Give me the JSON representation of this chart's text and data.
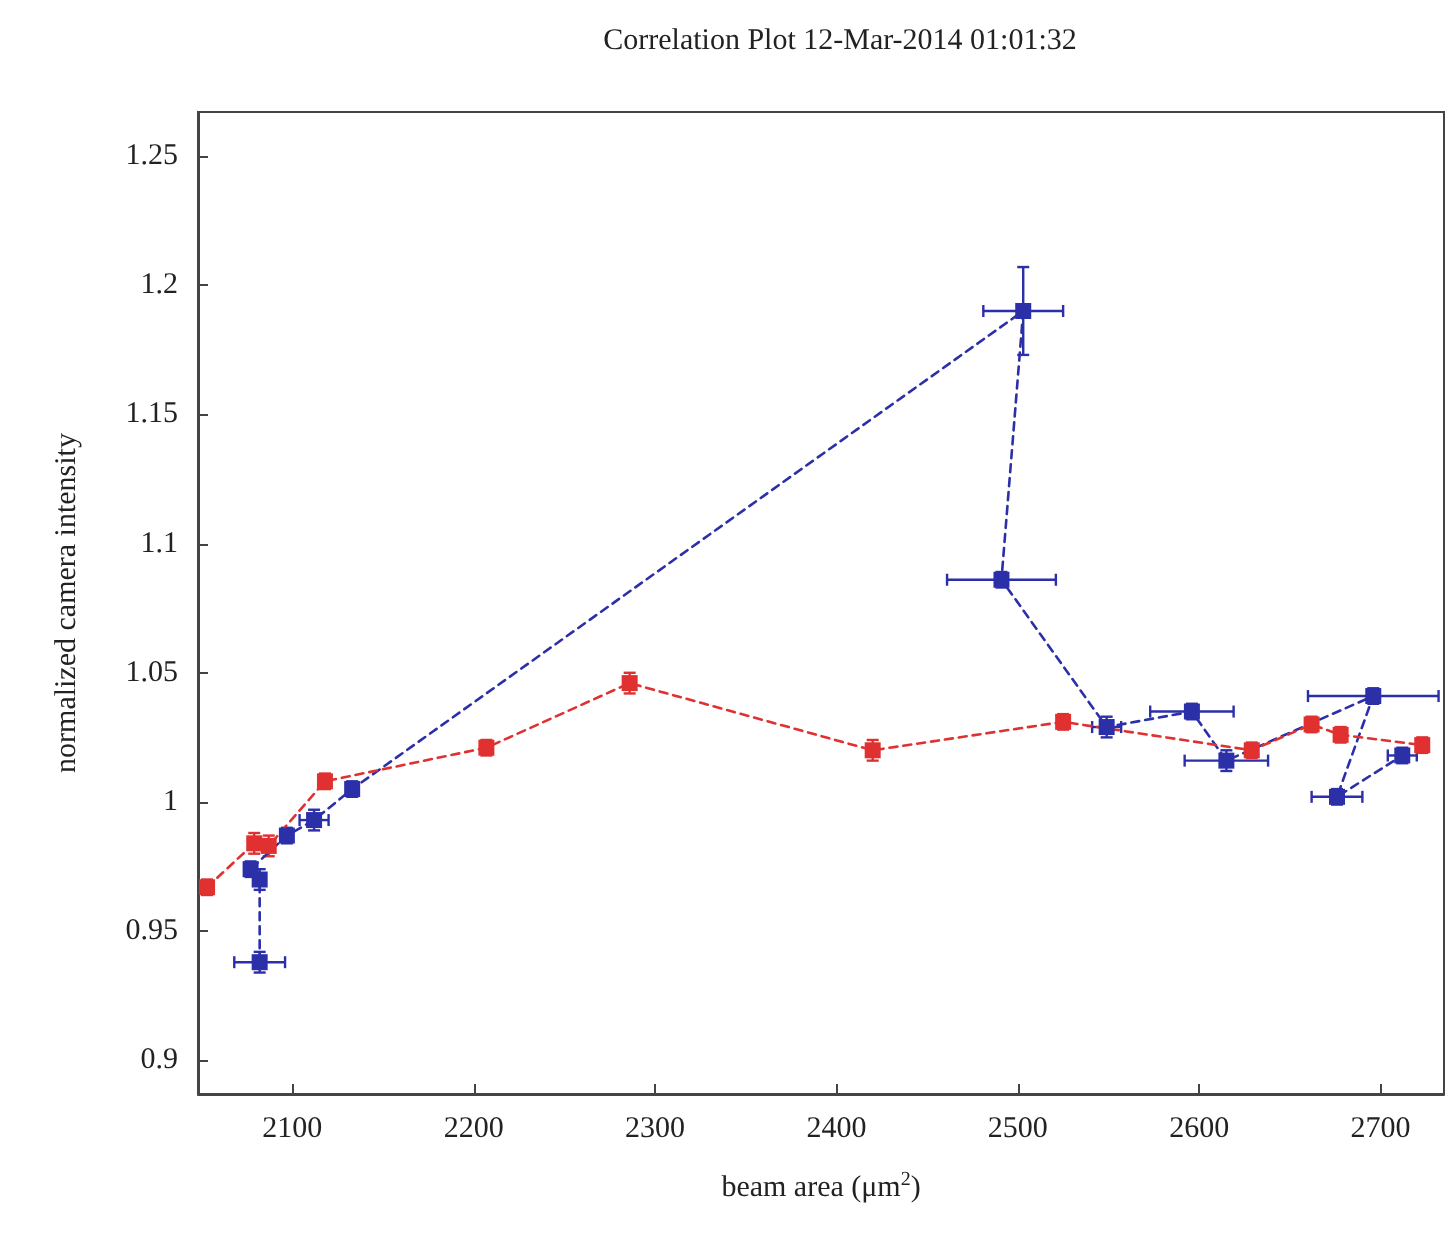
{
  "chart_data": {
    "type": "line",
    "title": "Correlation Plot 12-Mar-2014 01:01:32",
    "xlabel": "beam area (μm$^{2}$)",
    "ylabel": "normalized camera intensity",
    "xlim": [
      2048,
      2735
    ],
    "ylim": [
      0.887,
      1.267
    ],
    "xticks": [
      2100,
      2200,
      2300,
      2400,
      2500,
      2600,
      2700
    ],
    "yticks": [
      0.9,
      0.95,
      1,
      1.05,
      1.1,
      1.15,
      1.2,
      1.25
    ],
    "grid": false,
    "marker": "square",
    "line_style": "dashed",
    "series": [
      {
        "color": "#2b2fa8",
        "x": [
          2082,
          2082,
          2077,
          2097,
          2112,
          2133,
          2503,
          2491,
          2549,
          2596,
          2615,
          2696,
          2676,
          2712
        ],
        "values": [
          0.938,
          0.97,
          0.974,
          0.987,
          0.993,
          1.005,
          1.19,
          1.086,
          1.029,
          1.035,
          1.016,
          1.041,
          1.002,
          1.018
        ],
        "errors": [
          0.004,
          0.004,
          0.003,
          0.003,
          0.004,
          0.003,
          0.017,
          0.003,
          0.004,
          0.003,
          0.004,
          0.003,
          0.003,
          0.003
        ],
        "xerrors": [
          14,
          null,
          null,
          null,
          8,
          null,
          22,
          30,
          8,
          23,
          23,
          36,
          14,
          8
        ]
      },
      {
        "color": "#e03030",
        "x": [
          2053,
          2079,
          2087,
          2118,
          2207,
          2286,
          2420,
          2525,
          2629,
          2662,
          2678,
          2723
        ],
        "values": [
          0.967,
          0.984,
          0.983,
          1.008,
          1.021,
          1.046,
          1.02,
          1.031,
          1.02,
          1.03,
          1.026,
          1.022
        ],
        "errors": [
          0.003,
          0.004,
          0.004,
          0.003,
          0.003,
          0.004,
          0.004,
          0.003,
          0.003,
          0.003,
          0.003,
          0.003
        ]
      }
    ]
  }
}
